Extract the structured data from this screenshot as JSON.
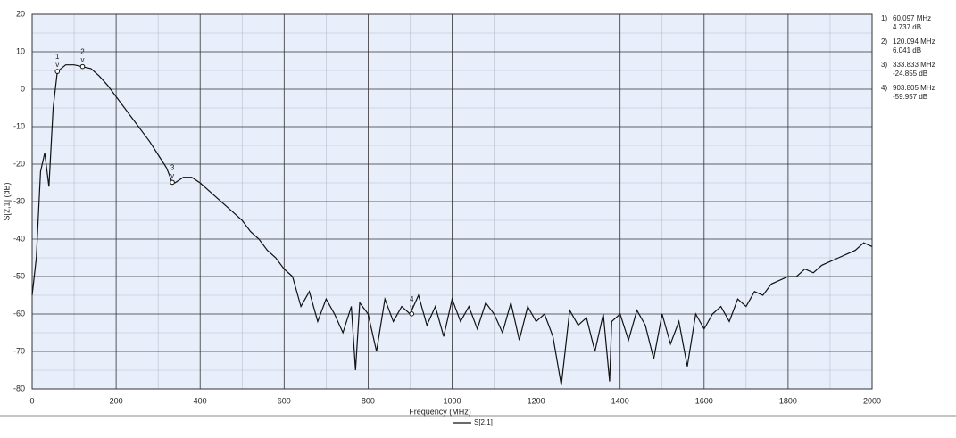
{
  "chart_data": {
    "type": "line",
    "x_label": "Frequency (MHz)",
    "y_label": "S[2,1] (dB)",
    "xlim": [
      0,
      2000
    ],
    "xticks": [
      0,
      200,
      400,
      600,
      800,
      1000,
      1200,
      1400,
      1600,
      1800,
      2000
    ],
    "x_minor_ticks": [
      100,
      300,
      500,
      700,
      900,
      1100,
      1300,
      1500,
      1700,
      1900
    ],
    "ylim": [
      -80,
      20
    ],
    "yticks": [
      -80,
      -70,
      -60,
      -50,
      -40,
      -30,
      -20,
      -10,
      0,
      10,
      20
    ],
    "y_minor_ticks": [
      -75,
      -65,
      -55,
      -45,
      -35,
      -25,
      -15,
      -5,
      5,
      15
    ],
    "grid": true,
    "legend": "bottom",
    "x": [
      0,
      10,
      20,
      30,
      40,
      50,
      60,
      80,
      100,
      120,
      140,
      160,
      180,
      200,
      220,
      240,
      260,
      280,
      300,
      320,
      333.833,
      340,
      360,
      380,
      400,
      420,
      440,
      460,
      480,
      500,
      520,
      540,
      560,
      580,
      600,
      620,
      640,
      660,
      680,
      700,
      720,
      740,
      760,
      770,
      780,
      800,
      820,
      840,
      860,
      880,
      900,
      920,
      940,
      960,
      980,
      1000,
      1020,
      1040,
      1060,
      1080,
      1100,
      1120,
      1140,
      1160,
      1180,
      1200,
      1220,
      1240,
      1260,
      1280,
      1300,
      1320,
      1340,
      1360,
      1375,
      1380,
      1400,
      1420,
      1440,
      1460,
      1480,
      1500,
      1520,
      1540,
      1560,
      1580,
      1600,
      1620,
      1640,
      1660,
      1680,
      1700,
      1720,
      1740,
      1760,
      1780,
      1800,
      1820,
      1840,
      1860,
      1880,
      1900,
      1920,
      1940,
      1960,
      1980,
      2000
    ],
    "series": [
      {
        "name": "S[2,1]",
        "color": "#111111",
        "values": [
          -55,
          -45,
          -22,
          -17,
          -26,
          -5,
          4.7,
          6.5,
          6.5,
          6,
          5.5,
          3.5,
          1,
          -2,
          -5,
          -8,
          -11,
          -14,
          -17.5,
          -21,
          -24.9,
          -25,
          -23.5,
          -23.5,
          -25,
          -27,
          -29,
          -31,
          -33,
          -35,
          -38,
          -40,
          -43,
          -45,
          -48,
          -50,
          -58,
          -54,
          -62,
          -56,
          -60,
          -65,
          -58,
          -75,
          -57,
          -60,
          -70,
          -56,
          -62,
          -58,
          -60,
          -55,
          -63,
          -58,
          -66,
          -56,
          -62,
          -58,
          -64,
          -57,
          -60,
          -65,
          -57,
          -67,
          -58,
          -62,
          -60,
          -66,
          -79,
          -59,
          -63,
          -61,
          -70,
          -60,
          -78,
          -62,
          -60,
          -67,
          -59,
          -63,
          -72,
          -60,
          -68,
          -62,
          -74,
          -60,
          -64,
          -60,
          -58,
          -62,
          -56,
          -58,
          -54,
          -55,
          -52,
          -51,
          -50,
          -50,
          -48,
          -49,
          -47,
          -46,
          -45,
          -44,
          -43,
          -41,
          -42
        ]
      }
    ],
    "markers": [
      {
        "id": "1",
        "entry": "1)",
        "x": {
          "value": 60.097,
          "label": "60.097 MHz"
        },
        "y": {
          "value": 4.737,
          "label": "4.737 dB"
        }
      },
      {
        "id": "2",
        "entry": "2)",
        "x": {
          "value": 120.094,
          "label": "120.094 MHz"
        },
        "y": {
          "value": 6.041,
          "label": "6.041 dB"
        }
      },
      {
        "id": "3",
        "entry": "3)",
        "x": {
          "value": 333.833,
          "label": "333.833 MHz"
        },
        "y": {
          "value": -24.855,
          "label": "-24.855 dB"
        }
      },
      {
        "id": "4",
        "entry": "4)",
        "x": {
          "value": 903.805,
          "label": "903.805 MHz"
        },
        "y": {
          "value": -59.957,
          "label": "-59.957 dB"
        }
      }
    ],
    "marker_symbol": "v"
  }
}
